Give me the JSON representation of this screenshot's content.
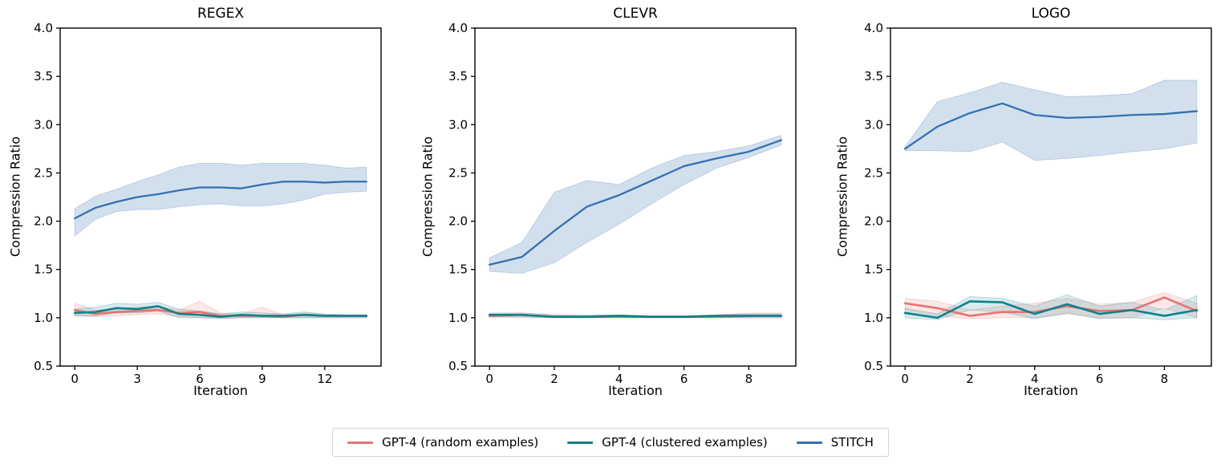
{
  "figure": {
    "background": "#ffffff"
  },
  "legend": {
    "items": [
      {
        "label": "GPT-4 (random examples)",
        "color": "#e8736d"
      },
      {
        "label": "GPT-4 (clustered examples)",
        "color": "#0f808c"
      },
      {
        "label": "STITCH",
        "color": "#3470b2"
      }
    ]
  },
  "chart_data": [
    {
      "type": "line",
      "title": "REGEX",
      "xlabel": "Iteration",
      "ylabel": "Compression Ratio",
      "xlim": [
        -0.7,
        14.7
      ],
      "ylim": [
        0.5,
        4.0
      ],
      "xticks": [
        0,
        3,
        6,
        9,
        12
      ],
      "yticks": [
        0.5,
        1.0,
        1.5,
        2.0,
        2.5,
        3.0,
        3.5,
        4.0
      ],
      "ytick_labels": [
        "0.5",
        "1.0",
        "1.5",
        "2.0",
        "2.5",
        "3.0",
        "3.5",
        "4.0"
      ],
      "grid": false,
      "x": [
        0,
        1,
        2,
        3,
        4,
        5,
        6,
        7,
        8,
        9,
        10,
        11,
        12,
        13,
        14
      ],
      "series": [
        {
          "name": "GPT-4 (random examples)",
          "color": "#e8736d",
          "band_opacity": 0.16,
          "values": [
            1.08,
            1.04,
            1.06,
            1.07,
            1.08,
            1.05,
            1.06,
            1.02,
            1.02,
            1.02,
            1.01,
            1.03,
            1.02,
            1.02,
            1.02
          ],
          "band_lower": [
            1.02,
            1.01,
            1.02,
            1.03,
            1.04,
            1.01,
            1.0,
            1.0,
            1.0,
            1.0,
            1.0,
            1.0,
            1.0,
            1.0,
            1.0
          ],
          "band_upper": [
            1.15,
            1.08,
            1.09,
            1.11,
            1.12,
            1.08,
            1.17,
            1.05,
            1.04,
            1.11,
            1.03,
            1.05,
            1.03,
            1.03,
            1.03
          ]
        },
        {
          "name": "GPT-4 (clustered examples)",
          "color": "#0f808c",
          "band_opacity": 0.16,
          "values": [
            1.05,
            1.06,
            1.1,
            1.09,
            1.12,
            1.04,
            1.03,
            1.01,
            1.03,
            1.02,
            1.02,
            1.03,
            1.02,
            1.02,
            1.02
          ],
          "band_lower": [
            1.02,
            1.02,
            1.05,
            1.05,
            1.07,
            1.0,
            1.0,
            0.99,
            1.0,
            1.0,
            1.0,
            1.0,
            1.0,
            1.0,
            1.0
          ],
          "band_upper": [
            1.09,
            1.11,
            1.15,
            1.14,
            1.16,
            1.09,
            1.07,
            1.04,
            1.06,
            1.05,
            1.04,
            1.06,
            1.04,
            1.03,
            1.03
          ]
        },
        {
          "name": "STITCH",
          "color": "#3470b2",
          "band_opacity": 0.22,
          "values": [
            2.03,
            2.14,
            2.2,
            2.25,
            2.28,
            2.32,
            2.35,
            2.35,
            2.34,
            2.38,
            2.41,
            2.41,
            2.4,
            2.41,
            2.41
          ],
          "band_lower": [
            1.85,
            2.02,
            2.1,
            2.12,
            2.12,
            2.15,
            2.17,
            2.18,
            2.16,
            2.16,
            2.18,
            2.22,
            2.28,
            2.3,
            2.31
          ],
          "band_upper": [
            2.13,
            2.26,
            2.33,
            2.41,
            2.48,
            2.56,
            2.6,
            2.6,
            2.58,
            2.6,
            2.6,
            2.6,
            2.58,
            2.55,
            2.56
          ]
        }
      ]
    },
    {
      "type": "line",
      "title": "CLEVR",
      "xlabel": "Iteration",
      "ylabel": "Compression Ratio",
      "xlim": [
        -0.45,
        9.45
      ],
      "ylim": [
        0.5,
        4.0
      ],
      "xticks": [
        0,
        2,
        4,
        6,
        8
      ],
      "yticks": [
        0.5,
        1.0,
        1.5,
        2.0,
        2.5,
        3.0,
        3.5,
        4.0
      ],
      "ytick_labels": [
        "0.5",
        "1.0",
        "1.5",
        "2.0",
        "2.5",
        "3.0",
        "3.5",
        "4.0"
      ],
      "grid": false,
      "x": [
        0,
        1,
        2,
        3,
        4,
        5,
        6,
        7,
        8,
        9
      ],
      "series": [
        {
          "name": "GPT-4 (random examples)",
          "color": "#e8736d",
          "band_opacity": 0.16,
          "values": [
            1.02,
            1.03,
            1.01,
            1.01,
            1.01,
            1.01,
            1.01,
            1.01,
            1.02,
            1.02
          ],
          "band_lower": [
            1.0,
            1.0,
            1.0,
            1.0,
            1.0,
            1.0,
            1.0,
            1.0,
            1.0,
            1.0
          ],
          "band_upper": [
            1.04,
            1.05,
            1.03,
            1.02,
            1.03,
            1.02,
            1.02,
            1.03,
            1.05,
            1.05
          ]
        },
        {
          "name": "GPT-4 (clustered examples)",
          "color": "#0f808c",
          "band_opacity": 0.16,
          "values": [
            1.03,
            1.03,
            1.01,
            1.01,
            1.02,
            1.01,
            1.01,
            1.02,
            1.02,
            1.02
          ],
          "band_lower": [
            1.01,
            1.01,
            1.0,
            1.0,
            1.0,
            1.0,
            1.0,
            1.0,
            1.0,
            1.0
          ],
          "band_upper": [
            1.05,
            1.05,
            1.03,
            1.03,
            1.03,
            1.02,
            1.02,
            1.03,
            1.04,
            1.04
          ]
        },
        {
          "name": "STITCH",
          "color": "#3470b2",
          "band_opacity": 0.22,
          "values": [
            1.55,
            1.63,
            1.9,
            2.15,
            2.27,
            2.42,
            2.57,
            2.65,
            2.72,
            2.84
          ],
          "band_lower": [
            1.48,
            1.46,
            1.57,
            1.78,
            1.97,
            2.18,
            2.38,
            2.55,
            2.66,
            2.79
          ],
          "band_upper": [
            1.62,
            1.78,
            2.3,
            2.42,
            2.38,
            2.55,
            2.68,
            2.72,
            2.78,
            2.89
          ]
        }
      ]
    },
    {
      "type": "line",
      "title": "LOGO",
      "xlabel": "Iteration",
      "ylabel": "Compression Ratio",
      "xlim": [
        -0.45,
        9.45
      ],
      "ylim": [
        0.5,
        4.0
      ],
      "xticks": [
        0,
        2,
        4,
        6,
        8
      ],
      "yticks": [
        0.5,
        1.0,
        1.5,
        2.0,
        2.5,
        3.0,
        3.5,
        4.0
      ],
      "ytick_labels": [
        "0.5",
        "1.0",
        "1.5",
        "2.0",
        "2.5",
        "3.0",
        "3.5",
        "4.0"
      ],
      "grid": false,
      "x": [
        0,
        1,
        2,
        3,
        4,
        5,
        6,
        7,
        8,
        9
      ],
      "series": [
        {
          "name": "GPT-4 (random examples)",
          "color": "#e8736d",
          "band_opacity": 0.16,
          "values": [
            1.15,
            1.1,
            1.02,
            1.06,
            1.06,
            1.12,
            1.07,
            1.08,
            1.21,
            1.07
          ],
          "band_lower": [
            1.08,
            1.02,
            0.99,
            1.0,
            1.0,
            1.04,
            1.0,
            1.0,
            1.1,
            1.0
          ],
          "band_upper": [
            1.2,
            1.17,
            1.08,
            1.12,
            1.15,
            1.2,
            1.14,
            1.16,
            1.26,
            1.15
          ]
        },
        {
          "name": "GPT-4 (clustered examples)",
          "color": "#0f808c",
          "band_opacity": 0.16,
          "values": [
            1.05,
            1.0,
            1.17,
            1.16,
            1.04,
            1.14,
            1.04,
            1.08,
            1.02,
            1.08
          ],
          "band_lower": [
            1.0,
            0.98,
            1.08,
            1.06,
            0.99,
            1.05,
            0.99,
            1.0,
            0.98,
            1.0
          ],
          "band_upper": [
            1.1,
            1.04,
            1.22,
            1.2,
            1.12,
            1.24,
            1.12,
            1.16,
            1.08,
            1.23
          ]
        },
        {
          "name": "STITCH",
          "color": "#3470b2",
          "band_opacity": 0.22,
          "values": [
            2.75,
            2.98,
            3.12,
            3.22,
            3.1,
            3.07,
            3.08,
            3.1,
            3.11,
            3.14
          ],
          "band_lower": [
            2.73,
            2.73,
            2.72,
            2.82,
            2.63,
            2.65,
            2.68,
            2.72,
            2.75,
            2.81
          ],
          "band_upper": [
            2.77,
            3.24,
            3.33,
            3.44,
            3.36,
            3.29,
            3.3,
            3.32,
            3.46,
            3.46
          ]
        }
      ]
    }
  ]
}
